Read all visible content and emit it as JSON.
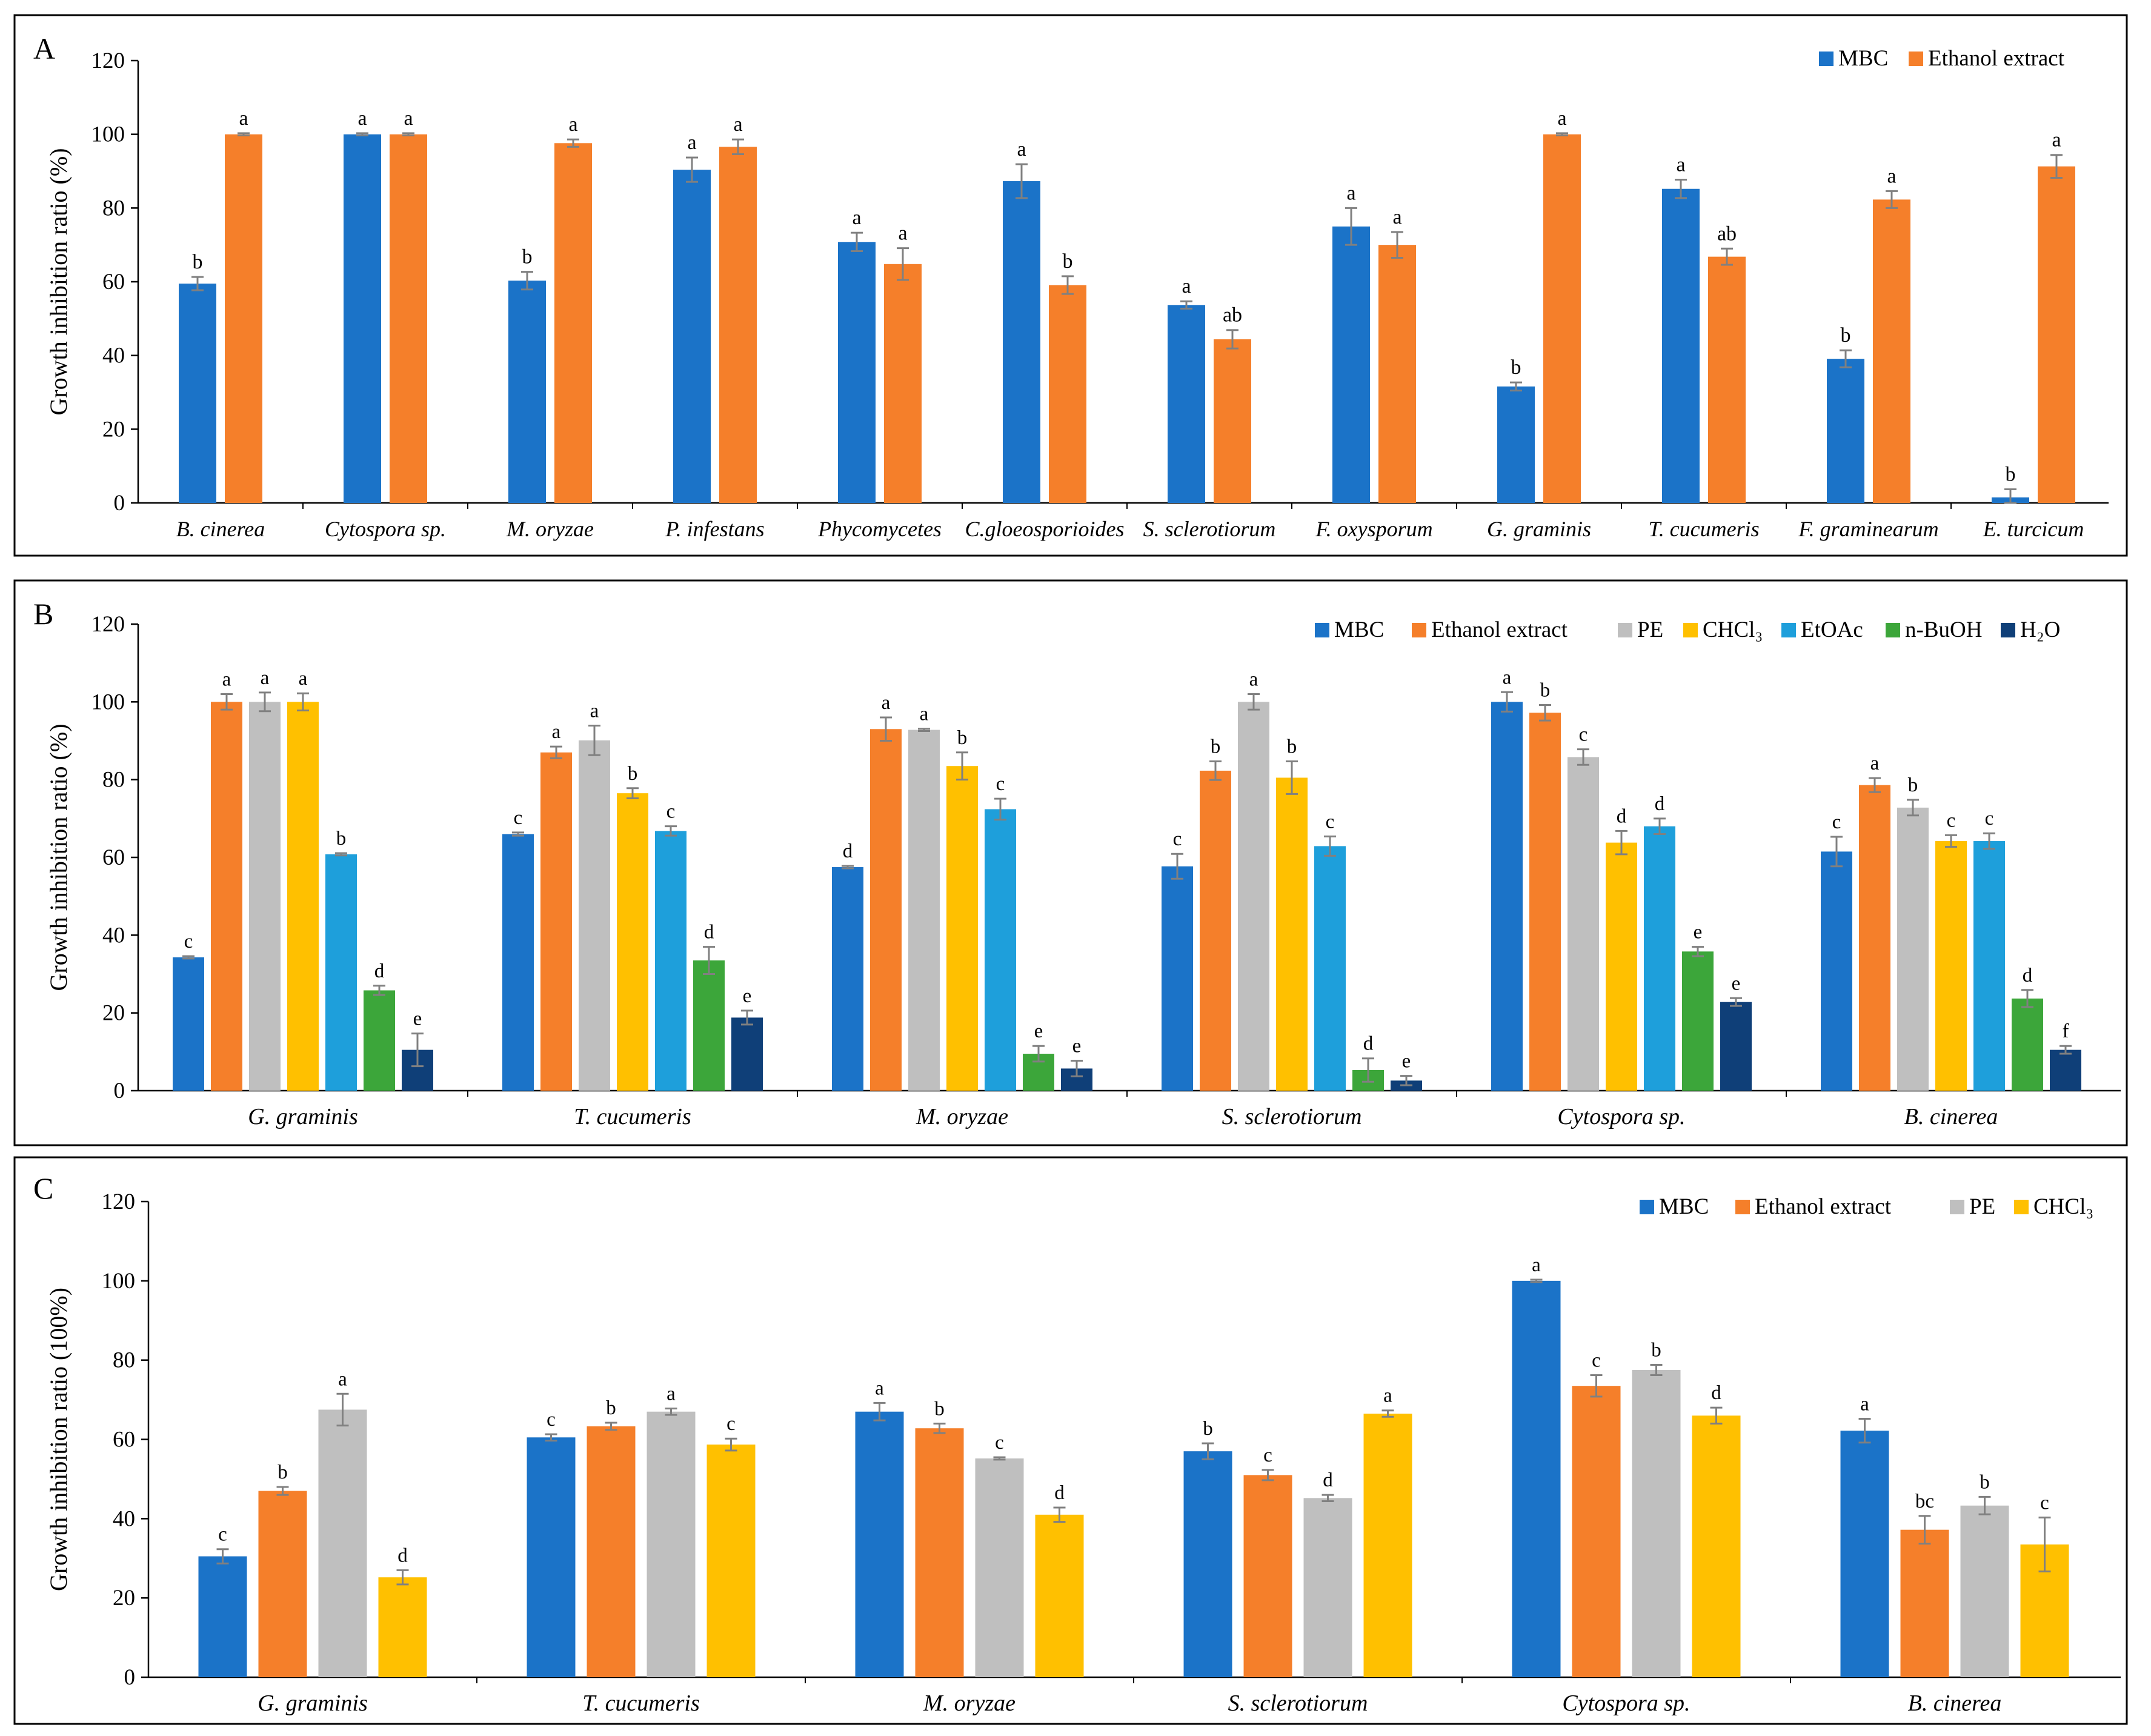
{
  "panels": [
    {
      "letter": "A",
      "ylabel": "Growth inhibition ratio (%)",
      "ylim": [
        0,
        120
      ],
      "yticks": [
        "0",
        "20",
        "40",
        "60",
        "80",
        "100",
        "120"
      ],
      "legend": [
        "MBC",
        "Ethanol extract"
      ]
    },
    {
      "letter": "B",
      "ylabel": "Growth inhibition ratio (%)",
      "ylim": [
        0,
        120
      ],
      "yticks": [
        "0",
        "20",
        "40",
        "60",
        "80",
        "100",
        "120"
      ],
      "legend": [
        "MBC",
        "Ethanol extract",
        "PE",
        "CHCl₃",
        "EtOAc",
        "n-BuOH",
        "H₂O"
      ]
    },
    {
      "letter": "C",
      "ylabel": "Growth inhibition ratio (100%)",
      "ylim": [
        0,
        120
      ],
      "yticks": [
        "0",
        "20",
        "40",
        "60",
        "80",
        "100",
        "120"
      ],
      "legend": [
        "MBC",
        "Ethanol extract",
        "PE",
        "CHCl₃"
      ]
    }
  ],
  "colors": {
    "MBC": "#1b73c8",
    "Ethanol extract": "#f57f2a",
    "PE": "#bfbfbf",
    "CHCl3": "#ffc000",
    "EtOAc": "#1e9fdb",
    "n-BuOH": "#3ca63a",
    "H2O": "#0f3f78",
    "error_bar": "#808080",
    "frame": "#000000"
  },
  "chart_data": [
    {
      "type": "bar",
      "panel": "A",
      "categories": [
        "B. cinerea",
        "Cytospora sp.",
        "M. oryzae",
        "P. infestans",
        "Phycomycetes",
        "C.gloeosporioides",
        "S. sclerotiorum",
        "F. oxysporum",
        "G. graminis",
        "T. cucumeris",
        "F. graminearum",
        "E. turcicum"
      ],
      "ylabel": "Growth inhibition ratio (%)",
      "ylim": [
        0,
        120
      ],
      "legend_position": "top-right",
      "grid": false,
      "series": [
        {
          "name": "MBC",
          "values": [
            59.5,
            100,
            60.3,
            90.4,
            70.8,
            87.3,
            53.7,
            75.0,
            31.6,
            85.2,
            39.1,
            1.5
          ],
          "errors": [
            1.8,
            0.3,
            2.4,
            3.3,
            2.5,
            4.6,
            1.0,
            5.0,
            1.1,
            2.5,
            2.3,
            2.2
          ],
          "labels": [
            "b",
            "a",
            "b",
            "a",
            "a",
            "a",
            "a",
            "a",
            "b",
            "a",
            "b",
            "b"
          ]
        },
        {
          "name": "Ethanol extract",
          "values": [
            100,
            100,
            97.6,
            96.6,
            64.8,
            59.1,
            44.4,
            70.0,
            100,
            66.8,
            82.3,
            91.3
          ],
          "errors": [
            0.3,
            0.3,
            1.0,
            2.0,
            4.3,
            2.4,
            2.5,
            3.5,
            0.3,
            2.2,
            2.3,
            3.1
          ],
          "labels": [
            "a",
            "a",
            "a",
            "a",
            "a",
            "b",
            "ab",
            "a",
            "a",
            "ab",
            "a",
            "a"
          ]
        }
      ]
    },
    {
      "type": "bar",
      "panel": "B",
      "categories": [
        "G. graminis",
        "T. cucumeris",
        "M. oryzae",
        "S. sclerotiorum",
        "Cytospora sp.",
        "B. cinerea"
      ],
      "ylabel": "Growth inhibition ratio (%)",
      "ylim": [
        0,
        120
      ],
      "legend_position": "top-right",
      "grid": false,
      "series": [
        {
          "name": "MBC",
          "values": [
            34.3,
            66.0,
            57.5,
            57.7,
            100,
            61.5
          ],
          "errors": [
            0.3,
            0.4,
            0.3,
            3.2,
            2.5,
            3.8
          ],
          "labels": [
            "c",
            "c",
            "d",
            "c",
            "a",
            "c"
          ]
        },
        {
          "name": "Ethanol extract",
          "values": [
            100,
            87.0,
            93.0,
            82.3,
            97.2,
            78.6
          ],
          "errors": [
            2.0,
            1.5,
            3.0,
            2.4,
            2.0,
            1.8
          ],
          "labels": [
            "a",
            "a",
            "a",
            "b",
            "b",
            "a"
          ]
        },
        {
          "name": "PE",
          "values": [
            100,
            90.1,
            92.8,
            100,
            85.8,
            72.8
          ],
          "errors": [
            2.4,
            3.8,
            0.3,
            2.0,
            2.0,
            2.0
          ],
          "labels": [
            "a",
            "a",
            "a",
            "a",
            "c",
            "b"
          ]
        },
        {
          "name": "CHCl₃",
          "values": [
            100,
            76.5,
            83.5,
            80.5,
            63.8,
            64.2
          ],
          "errors": [
            2.2,
            1.3,
            3.5,
            4.2,
            3.0,
            1.5
          ],
          "labels": [
            "a",
            "b",
            "b",
            "b",
            "d",
            "c"
          ]
        },
        {
          "name": "EtOAc",
          "values": [
            60.8,
            66.8,
            72.4,
            62.9,
            68.0,
            64.2
          ],
          "errors": [
            0.3,
            1.2,
            2.7,
            2.5,
            2.0,
            2.0
          ],
          "labels": [
            "b",
            "c",
            "c",
            "c",
            "d",
            "c"
          ]
        },
        {
          "name": "n-BuOH",
          "values": [
            25.8,
            33.5,
            9.5,
            5.3,
            35.8,
            23.7
          ],
          "errors": [
            1.2,
            3.5,
            2.0,
            3.0,
            1.2,
            2.2
          ],
          "labels": [
            "d",
            "d",
            "e",
            "d",
            "e",
            "d"
          ]
        },
        {
          "name": "H₂O",
          "values": [
            10.5,
            18.8,
            5.7,
            2.6,
            22.8,
            10.5
          ],
          "errors": [
            4.2,
            1.8,
            2.0,
            1.2,
            1.0,
            1.0
          ],
          "labels": [
            "e",
            "e",
            "e",
            "e",
            "e",
            "f"
          ]
        }
      ]
    },
    {
      "type": "bar",
      "panel": "C",
      "categories": [
        "G. graminis",
        "T. cucumeris",
        "M. oryzae",
        "S. sclerotiorum",
        "Cytospora sp.",
        "B. cinerea"
      ],
      "ylabel": "Growth inhibition ratio (100%)",
      "ylim": [
        0,
        120
      ],
      "legend_position": "top-right",
      "grid": false,
      "series": [
        {
          "name": "MBC",
          "values": [
            30.5,
            60.5,
            67.0,
            57.0,
            100,
            62.2
          ],
          "errors": [
            1.8,
            0.8,
            2.2,
            2.0,
            0.3,
            3.0
          ],
          "labels": [
            "c",
            "c",
            "a",
            "b",
            "a",
            "a"
          ]
        },
        {
          "name": "Ethanol extract",
          "values": [
            47.0,
            63.3,
            62.8,
            51.0,
            73.5,
            37.2
          ],
          "errors": [
            1.0,
            0.9,
            1.2,
            1.3,
            2.7,
            3.5
          ],
          "labels": [
            "b",
            "b",
            "b",
            "c",
            "c",
            "bc"
          ]
        },
        {
          "name": "PE",
          "values": [
            67.5,
            67.0,
            55.2,
            45.2,
            77.5,
            43.3
          ],
          "errors": [
            4.0,
            0.8,
            0.3,
            0.8,
            1.3,
            2.2
          ],
          "labels": [
            "a",
            "a",
            "c",
            "d",
            "b",
            "b"
          ]
        },
        {
          "name": "CHCl₃",
          "values": [
            25.2,
            58.7,
            41.0,
            66.5,
            66.0,
            33.5
          ],
          "errors": [
            1.8,
            1.5,
            1.8,
            0.8,
            2.0,
            6.8
          ],
          "labels": [
            "d",
            "c",
            "d",
            "a",
            "d",
            "c"
          ]
        }
      ]
    }
  ]
}
